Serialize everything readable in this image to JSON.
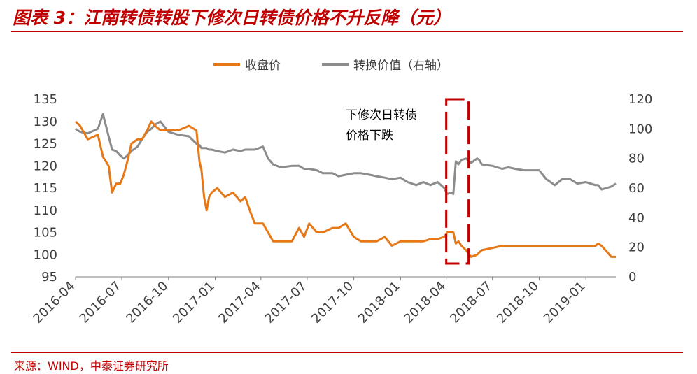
{
  "header": {
    "title": "图表 3：江南转债转股下修次日转债价格不升反降（元）"
  },
  "footer": {
    "source": "来源：WIND，中泰证券研究所"
  },
  "colors": {
    "close": "#e67817",
    "conv": "#8c8c8c",
    "accent": "#c00000",
    "axis": "#7f7f7f"
  },
  "chart_data": {
    "type": "line",
    "title": "图表 3：江南转债转股下修次日转债价格不升反降（元）",
    "legend_position": "top",
    "grid": false,
    "x_axis": {
      "ticks": [
        "2016-04",
        "2016-07",
        "2016-10",
        "2017-01",
        "2017-04",
        "2017-07",
        "2017-10",
        "2018-01",
        "2018-04",
        "2018-07",
        "2018-10",
        "2019-01"
      ],
      "range": [
        "2016-04",
        "2019-03"
      ]
    },
    "y_left": {
      "ticks": [
        "135",
        "130",
        "125",
        "120",
        "115",
        "110",
        "105",
        "100",
        "95"
      ],
      "range": [
        95,
        135
      ]
    },
    "y_right": {
      "ticks": [
        "120",
        "100",
        "80",
        "60",
        "40",
        "20",
        "0"
      ],
      "range": [
        0,
        120
      ]
    },
    "annotation": {
      "text_line1": "下修次日转债",
      "text_line2": "价格下跌",
      "box": {
        "start": "2018-04-01",
        "end": "2018-05-15"
      }
    },
    "series": [
      {
        "name": "收盘价",
        "axis": "left",
        "x": [
          "2016-04-01",
          "2016-04-10",
          "2016-04-25",
          "2016-05-15",
          "2016-05-25",
          "2016-06-05",
          "2016-06-12",
          "2016-06-20",
          "2016-06-28",
          "2016-07-05",
          "2016-07-12",
          "2016-07-20",
          "2016-08-01",
          "2016-08-10",
          "2016-08-20",
          "2016-08-28",
          "2016-09-05",
          "2016-09-15",
          "2016-10-01",
          "2016-10-20",
          "2016-11-10",
          "2016-11-25",
          "2016-12-01",
          "2016-12-05",
          "2016-12-10",
          "2016-12-15",
          "2016-12-20",
          "2016-12-25",
          "2017-01-05",
          "2017-01-20",
          "2017-02-05",
          "2017-02-20",
          "2017-03-01",
          "2017-03-10",
          "2017-03-20",
          "2017-04-05",
          "2017-04-15",
          "2017-04-25",
          "2017-05-10",
          "2017-06-01",
          "2017-06-15",
          "2017-06-25",
          "2017-07-05",
          "2017-07-20",
          "2017-08-01",
          "2017-08-20",
          "2017-09-01",
          "2017-09-15",
          "2017-10-01",
          "2017-10-15",
          "2017-11-01",
          "2017-11-15",
          "2017-12-01",
          "2017-12-15",
          "2018-01-01",
          "2018-01-15",
          "2018-02-01",
          "2018-02-15",
          "2018-03-01",
          "2018-03-15",
          "2018-03-28",
          "2018-04-03",
          "2018-04-10",
          "2018-04-15",
          "2018-04-20",
          "2018-04-25",
          "2018-05-01",
          "2018-05-10",
          "2018-05-20",
          "2018-06-01",
          "2018-06-05",
          "2018-06-10",
          "2018-07-01",
          "2018-07-20",
          "2018-08-01",
          "2018-08-15",
          "2018-09-01",
          "2018-09-15",
          "2018-10-01",
          "2018-10-15",
          "2018-11-01",
          "2018-11-15",
          "2018-12-01",
          "2018-12-15",
          "2019-01-01",
          "2019-01-10",
          "2019-01-20",
          "2019-01-25",
          "2019-02-01",
          "2019-02-20",
          "2019-03-01"
        ],
        "y": [
          130,
          129,
          126,
          127,
          122,
          120,
          114,
          116,
          116,
          118,
          121,
          125,
          126,
          126,
          128,
          130,
          129,
          128,
          128,
          128,
          129,
          128,
          121,
          119,
          113,
          110,
          113,
          114,
          115,
          113,
          114,
          112,
          113,
          110,
          107,
          107,
          105,
          103,
          103,
          103,
          106,
          104,
          107,
          105,
          105,
          106,
          106,
          107,
          104,
          103,
          103,
          103,
          104,
          102,
          103,
          103,
          103,
          103,
          103.5,
          103.5,
          104,
          105,
          105,
          105,
          102.5,
          103,
          102,
          101,
          99.5,
          100,
          100.5,
          101,
          101.5,
          102,
          102,
          102,
          102,
          102,
          102,
          102,
          102,
          102,
          102,
          102,
          102,
          102,
          102,
          102.5,
          102,
          99.5,
          99.5
        ]
      },
      {
        "name": "转换价值（右轴）",
        "axis": "right",
        "x": [
          "2016-04-01",
          "2016-04-10",
          "2016-04-25",
          "2016-05-15",
          "2016-05-25",
          "2016-06-05",
          "2016-06-12",
          "2016-06-20",
          "2016-06-28",
          "2016-07-05",
          "2016-07-12",
          "2016-07-20",
          "2016-08-01",
          "2016-08-10",
          "2016-08-20",
          "2016-08-28",
          "2016-09-05",
          "2016-09-15",
          "2016-10-01",
          "2016-10-20",
          "2016-11-10",
          "2016-11-25",
          "2016-12-01",
          "2016-12-05",
          "2016-12-10",
          "2016-12-15",
          "2016-12-20",
          "2016-12-25",
          "2017-01-05",
          "2017-01-20",
          "2017-02-05",
          "2017-02-20",
          "2017-03-01",
          "2017-03-10",
          "2017-03-20",
          "2017-04-05",
          "2017-04-15",
          "2017-04-25",
          "2017-05-10",
          "2017-06-01",
          "2017-06-15",
          "2017-06-25",
          "2017-07-05",
          "2017-07-20",
          "2017-08-01",
          "2017-08-20",
          "2017-09-01",
          "2017-09-15",
          "2017-10-01",
          "2017-10-15",
          "2017-11-01",
          "2017-11-15",
          "2017-12-01",
          "2017-12-15",
          "2018-01-01",
          "2018-01-15",
          "2018-02-01",
          "2018-02-15",
          "2018-03-01",
          "2018-03-15",
          "2018-03-28",
          "2018-04-03",
          "2018-04-10",
          "2018-04-15",
          "2018-04-20",
          "2018-04-25",
          "2018-05-01",
          "2018-05-10",
          "2018-05-20",
          "2018-06-01",
          "2018-06-05",
          "2018-06-10",
          "2018-07-01",
          "2018-07-20",
          "2018-08-01",
          "2018-08-15",
          "2018-09-01",
          "2018-09-15",
          "2018-10-01",
          "2018-10-15",
          "2018-11-01",
          "2018-11-15",
          "2018-12-01",
          "2018-12-15",
          "2019-01-01",
          "2019-01-10",
          "2019-01-20",
          "2019-01-25",
          "2019-02-01",
          "2019-02-20",
          "2019-03-01"
        ],
        "y": [
          100,
          98,
          97,
          100,
          110,
          95,
          86,
          85,
          82,
          80,
          82,
          85,
          88,
          93,
          98,
          100,
          103,
          105,
          98,
          96,
          95,
          90,
          89,
          87,
          87,
          87,
          86,
          86,
          85,
          84,
          86,
          85,
          86,
          86,
          86,
          88,
          80,
          76,
          74,
          75,
          75,
          73,
          73,
          72,
          70,
          70,
          68,
          69,
          70,
          70,
          69,
          68,
          67,
          66,
          67,
          64,
          62,
          64,
          62,
          64,
          60,
          56,
          57,
          56,
          78,
          76,
          79,
          80,
          77,
          80,
          79,
          76,
          75,
          73,
          74,
          73,
          72,
          72,
          72,
          66,
          62,
          66,
          66,
          63,
          64,
          63,
          62,
          62,
          59,
          61,
          63
        ]
      }
    ]
  }
}
